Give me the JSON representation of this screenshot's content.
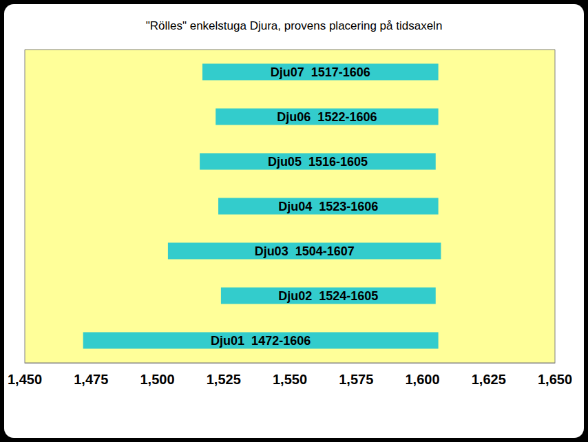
{
  "chart_data": {
    "type": "bar",
    "orientation": "horizontal",
    "title": "\"Rölles\" enkelstuga Djura, provens placering på tidsaxeln",
    "categories": [
      "Dju01",
      "Dju02",
      "Dju03",
      "Dju04",
      "Dju05",
      "Dju06",
      "Dju07"
    ],
    "start": [
      1472,
      1524,
      1504,
      1523,
      1516,
      1522,
      1517
    ],
    "end": [
      1606,
      1605,
      1607,
      1606,
      1605,
      1606,
      1606
    ],
    "value_labels": [
      "Dju01  1472-1606",
      "Dju02  1524-1605",
      "Dju03  1504-1607",
      "Dju04  1523-1606",
      "Dju05  1516-1605",
      "Dju06  1522-1606",
      "Dju07  1517-1606"
    ],
    "data_labels": true,
    "color": "#33cccc",
    "xlim": [
      1450,
      1650
    ],
    "xticks": [
      1450,
      1475,
      1500,
      1525,
      1550,
      1575,
      1600,
      1625,
      1650
    ],
    "grid": false,
    "tick_labels": "x"
  }
}
